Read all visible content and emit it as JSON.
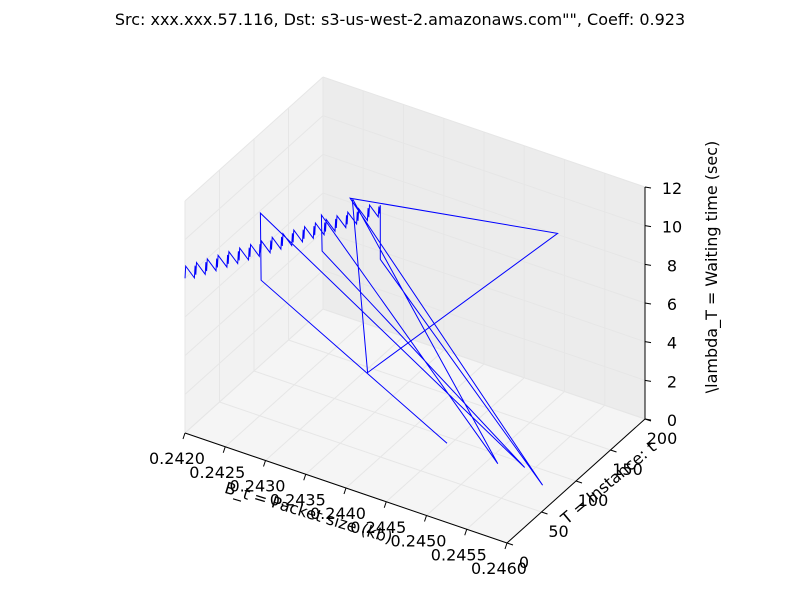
{
  "chart_data": {
    "type": "line",
    "projection": "3d",
    "title": "Src: xxx.xxx.57.116, Dst: s3-us-west-2.amazonaws.com\"\", Coeff: 0.923",
    "xlabel": "B_t = Packet size (kb)",
    "ylabel": "T = Instance: t",
    "zlabel": "\\lambda_T = Waiting time (sec)",
    "xlim": [
      0.242,
      0.246
    ],
    "ylim": [
      0,
      200
    ],
    "zlim": [
      0,
      12
    ],
    "x_ticks": [
      "0.2420",
      "0.2425",
      "0.2430",
      "0.2435",
      "0.2440",
      "0.2445",
      "0.2450",
      "0.2455",
      "0.2460"
    ],
    "y_ticks": [
      "0",
      "50",
      "100",
      "150",
      "200"
    ],
    "z_ticks": [
      "0",
      "2",
      "4",
      "6",
      "8",
      "10",
      "12"
    ],
    "grid": true,
    "line_color": "#0000ff",
    "series": [
      {
        "points": [
          [
            0.242,
            0,
            8.0
          ],
          [
            0.242,
            1,
            8.6
          ],
          [
            0.2421,
            2,
            8.1
          ],
          [
            0.2421,
            3,
            8.7
          ],
          [
            0.2421,
            4,
            8.2
          ],
          [
            0.2421,
            5,
            8.8
          ],
          [
            0.2422,
            6,
            8.3
          ],
          [
            0.2422,
            7,
            8.9
          ],
          [
            0.2422,
            8,
            8.4
          ],
          [
            0.2422,
            9,
            9.0
          ],
          [
            0.2423,
            10,
            8.5
          ],
          [
            0.2423,
            11,
            9.1
          ],
          [
            0.2423,
            12,
            8.6
          ],
          [
            0.2423,
            13,
            9.2
          ],
          [
            0.2424,
            14,
            8.7
          ],
          [
            0.2424,
            15,
            9.3
          ],
          [
            0.2424,
            16,
            8.8
          ],
          [
            0.2424,
            17,
            9.4
          ],
          [
            0.2425,
            18,
            8.9
          ],
          [
            0.2425,
            19,
            9.5
          ],
          [
            0.2425,
            20,
            9.0
          ],
          [
            0.2425,
            21,
            9.6
          ],
          [
            0.2426,
            22,
            9.1
          ],
          [
            0.2426,
            23,
            9.7
          ],
          [
            0.2426,
            24,
            9.2
          ],
          [
            0.2426,
            25,
            9.8
          ],
          [
            0.2427,
            26,
            9.3
          ],
          [
            0.2427,
            27,
            9.9
          ],
          [
            0.2427,
            28,
            9.4
          ],
          [
            0.2427,
            29,
            10.0
          ],
          [
            0.2428,
            30,
            9.5
          ],
          [
            0.2428,
            31,
            10.1
          ],
          [
            0.2428,
            32,
            9.6
          ],
          [
            0.2428,
            33,
            10.2
          ],
          [
            0.2429,
            34,
            9.7
          ],
          [
            0.2429,
            35,
            10.3
          ],
          [
            0.2429,
            36,
            9.8
          ],
          [
            0.2429,
            37,
            10.4
          ],
          [
            0.243,
            38,
            9.9
          ],
          [
            0.243,
            39,
            10.5
          ],
          [
            0.243,
            40,
            10.0
          ],
          [
            0.243,
            41,
            10.6
          ],
          [
            0.2431,
            42,
            10.1
          ],
          [
            0.2431,
            43,
            10.7
          ],
          [
            0.2431,
            44,
            10.2
          ],
          [
            0.2431,
            45,
            10.8
          ],
          [
            0.2432,
            46,
            10.3
          ],
          [
            0.2432,
            47,
            10.9
          ],
          [
            0.2432,
            48,
            10.4
          ],
          [
            0.2432,
            49,
            11.0
          ],
          [
            0.2433,
            50,
            10.5
          ],
          [
            0.2433,
            51,
            11.1
          ],
          [
            0.2433,
            52,
            10.6
          ],
          [
            0.2433,
            53,
            11.2
          ],
          [
            0.2434,
            54,
            10.7
          ],
          [
            0.2434,
            55,
            11.3
          ],
          [
            0.2434,
            56,
            10.8
          ],
          [
            0.2434,
            57,
            11.4
          ],
          [
            0.2435,
            58,
            10.9
          ],
          [
            0.2435,
            59,
            11.5
          ],
          [
            0.2435,
            60,
            11.0
          ],
          [
            0.2435,
            61,
            11.6
          ],
          [
            0.2436,
            62,
            11.1
          ],
          [
            0.2436,
            63,
            11.7
          ],
          [
            0.2436,
            64,
            11.2
          ],
          [
            0.2436,
            65,
            11.8
          ],
          [
            0.2437,
            66,
            11.3
          ],
          [
            0.2437,
            67,
            11.9
          ],
          [
            0.2437,
            68,
            11.4
          ],
          [
            0.2437,
            69,
            12.0
          ],
          [
            0.2438,
            70,
            11.5
          ],
          [
            0.2438,
            71,
            12.0
          ],
          [
            0.2438,
            72,
            11.6
          ],
          [
            0.2438,
            73,
            12.0
          ],
          [
            0.2438,
            73,
            9.2
          ],
          [
            0.2458,
            75,
            0.3
          ],
          [
            0.2434,
            76,
            11.7
          ],
          [
            0.245,
            190,
            8.5
          ],
          [
            0.2436,
            78,
            2.9
          ],
          [
            0.2434,
            79,
            11.6
          ],
          [
            0.2452,
            80,
            0.4
          ],
          [
            0.243,
            81,
            10.1
          ],
          [
            0.243,
            82,
            8.2
          ],
          [
            0.2455,
            84,
            0.5
          ],
          [
            0.2422,
            86,
            8.9
          ],
          [
            0.2422,
            87,
            5.4
          ],
          [
            0.2445,
            88,
            0.2
          ]
        ]
      }
    ]
  }
}
